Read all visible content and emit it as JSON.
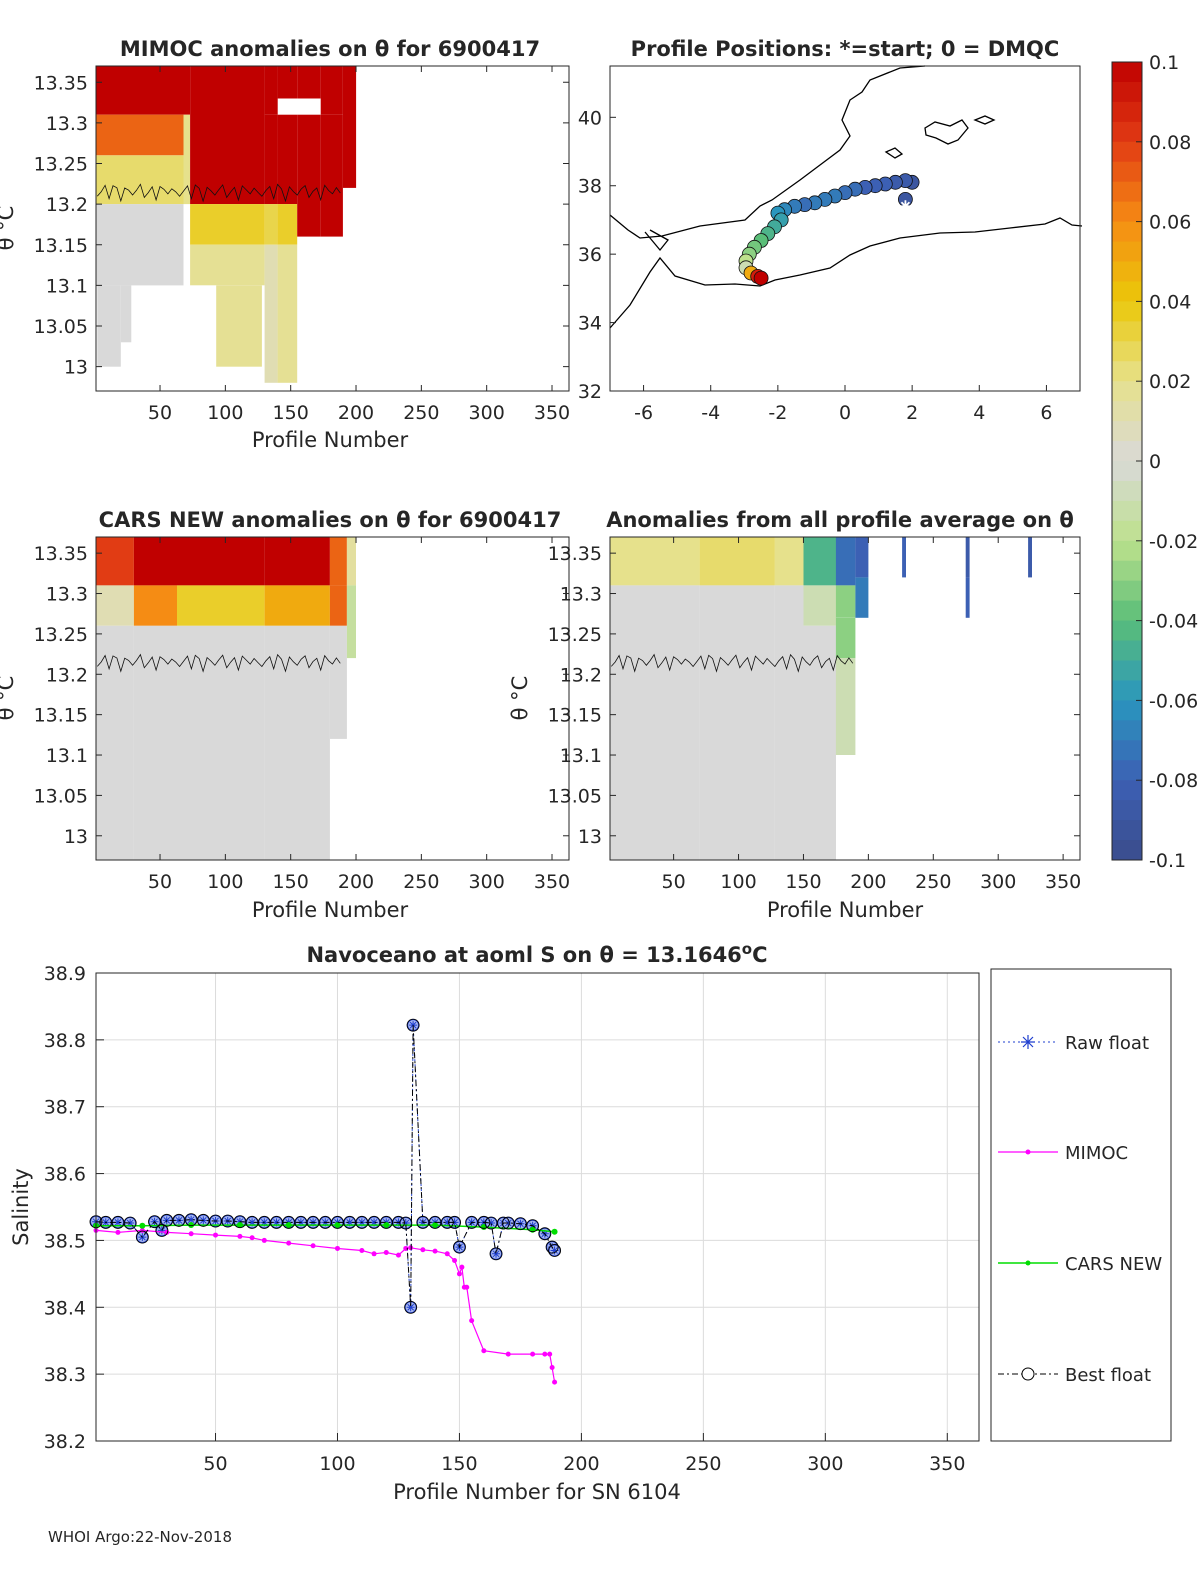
{
  "footer": "WHOI Argo:22-Nov-2018",
  "colors": {
    "anom_high": "#c00000",
    "anom_zero": "#d9d9d9",
    "anom_low": "#3b5fae",
    "raw_float": "#1f3fcf",
    "mimoc": "#ff00ff",
    "cars_new": "#00dd00",
    "best_float": "#000000",
    "coast": "#000000"
  },
  "colorbar": {
    "ticks": [
      "0.1",
      "0.08",
      "0.06",
      "0.04",
      "0.02",
      "0",
      "-0.02",
      "-0.04",
      "-0.06",
      "-0.08",
      "-0.1"
    ],
    "range": [
      -0.1,
      0.1
    ]
  },
  "chart_data": [
    {
      "id": "mimoc_anom",
      "type": "heatmap",
      "title": "MIMOC anomalies on θ  for 6900417",
      "xlabel": "Profile Number",
      "ylabel": "θ °C",
      "xlim": [
        1,
        363
      ],
      "ylim": [
        12.97,
        13.37
      ],
      "xticks": [
        "50",
        "100",
        "150",
        "200",
        "250",
        "300",
        "350"
      ],
      "yticks": [
        "13.35",
        "13.3",
        "13.25",
        "13.2",
        "13.15",
        "13.1",
        "13.05",
        "13"
      ],
      "columns": [
        {
          "x0": 1,
          "x1": 68,
          "bands": [
            [
              13.31,
              13.37,
              0.1
            ],
            [
              13.26,
              13.31,
              0.07
            ],
            [
              13.2,
              13.26,
              0.025
            ],
            [
              13.1,
              13.2,
              0.0
            ]
          ]
        },
        {
          "x0": 2,
          "x1": 20,
          "bands": [
            [
              13.0,
              13.1,
              0.0
            ]
          ]
        },
        {
          "x0": 20,
          "x1": 28,
          "bands": [
            [
              13.03,
              13.1,
              0.0
            ]
          ]
        },
        {
          "x0": 68,
          "x1": 73,
          "bands": [
            [
              13.31,
              13.37,
              0.1
            ],
            [
              13.2,
              13.31,
              0.02
            ]
          ]
        },
        {
          "x0": 73,
          "x1": 130,
          "bands": [
            [
              13.2,
              13.37,
              0.1
            ],
            [
              13.15,
              13.2,
              0.035
            ],
            [
              13.1,
              13.15,
              0.018
            ]
          ]
        },
        {
          "x0": 93,
          "x1": 128,
          "bands": [
            [
              13.0,
              13.1,
              0.018
            ]
          ]
        },
        {
          "x0": 130,
          "x1": 140,
          "bands": [
            [
              13.31,
              13.37,
              0.1
            ],
            [
              13.2,
              13.31,
              0.1
            ],
            [
              13.15,
              13.2,
              0.03
            ],
            [
              12.98,
              13.15,
              0.01
            ]
          ]
        },
        {
          "x0": 140,
          "x1": 155,
          "bands": [
            [
              13.33,
              13.37,
              0.1
            ],
            [
              13.2,
              13.31,
              0.1
            ],
            [
              13.15,
              13.2,
              0.035
            ],
            [
              12.98,
              13.15,
              0.018
            ]
          ]
        },
        {
          "x0": 155,
          "x1": 173,
          "bands": [
            [
              13.33,
              13.37,
              0.1
            ],
            [
              13.16,
              13.31,
              0.1
            ]
          ]
        },
        {
          "x0": 173,
          "x1": 190,
          "bands": [
            [
              13.31,
              13.37,
              0.1
            ],
            [
              13.16,
              13.31,
              0.1
            ]
          ]
        },
        {
          "x0": 190,
          "x1": 200,
          "bands": [
            [
              13.22,
              13.37,
              0.1
            ]
          ]
        }
      ]
    },
    {
      "id": "positions",
      "type": "scatter",
      "title": "Profile Positions: *=start; 0 = DMQC",
      "xlim": [
        -7,
        7
      ],
      "ylim": [
        32,
        41.5
      ],
      "xticks": [
        "-6",
        "-4",
        "-2",
        "0",
        "2",
        "4",
        "6"
      ],
      "yticks": [
        "32",
        "34",
        "36",
        "38",
        "40"
      ],
      "start": [
        1.8,
        37.4
      ],
      "track": [
        [
          1.8,
          37.6
        ],
        [
          2.0,
          38.1
        ],
        [
          1.8,
          38.15
        ],
        [
          1.5,
          38.1
        ],
        [
          1.2,
          38.05
        ],
        [
          0.9,
          38.0
        ],
        [
          0.6,
          37.95
        ],
        [
          0.3,
          37.9
        ],
        [
          0.0,
          37.8
        ],
        [
          -0.3,
          37.7
        ],
        [
          -0.6,
          37.6
        ],
        [
          -0.9,
          37.5
        ],
        [
          -1.2,
          37.45
        ],
        [
          -1.5,
          37.4
        ],
        [
          -1.8,
          37.3
        ],
        [
          -2.0,
          37.2
        ],
        [
          -1.9,
          37.0
        ],
        [
          -2.1,
          36.8
        ],
        [
          -2.3,
          36.6
        ],
        [
          -2.5,
          36.4
        ],
        [
          -2.7,
          36.2
        ],
        [
          -2.85,
          36.0
        ],
        [
          -2.95,
          35.8
        ],
        [
          -2.95,
          35.6
        ],
        [
          -2.8,
          35.45
        ],
        [
          -2.6,
          35.35
        ],
        [
          -2.5,
          35.3
        ]
      ],
      "track_values": [
        -0.09,
        -0.09,
        -0.085,
        -0.085,
        -0.08,
        -0.08,
        -0.08,
        -0.075,
        -0.075,
        -0.07,
        -0.07,
        -0.07,
        -0.075,
        -0.07,
        -0.065,
        -0.06,
        -0.055,
        -0.05,
        -0.045,
        -0.04,
        -0.035,
        -0.03,
        -0.02,
        -0.01,
        0.05,
        0.09,
        0.1
      ]
    },
    {
      "id": "cars_anom",
      "type": "heatmap",
      "title": "CARS NEW anomalies on θ for 6900417",
      "xlabel": "Profile Number",
      "ylabel": "θ °C",
      "xlim": [
        1,
        363
      ],
      "ylim": [
        12.97,
        13.37
      ],
      "xticks": [
        "50",
        "100",
        "150",
        "200",
        "250",
        "300",
        "350"
      ],
      "yticks": [
        "13.35",
        "13.3",
        "13.25",
        "13.2",
        "13.15",
        "13.1",
        "13.05",
        "13"
      ],
      "columns": [
        {
          "x0": 1,
          "x1": 30,
          "bands": [
            [
              13.31,
              13.37,
              0.08
            ],
            [
              13.26,
              13.31,
              0.01
            ],
            [
              12.97,
              13.26,
              0.0
            ]
          ]
        },
        {
          "x0": 30,
          "x1": 63,
          "bands": [
            [
              13.31,
              13.37,
              0.1
            ],
            [
              13.26,
              13.31,
              0.06
            ],
            [
              12.97,
              13.26,
              0.0
            ]
          ]
        },
        {
          "x0": 63,
          "x1": 130,
          "bands": [
            [
              13.31,
              13.37,
              0.1
            ],
            [
              13.26,
              13.31,
              0.035
            ],
            [
              12.97,
              13.26,
              0.0
            ]
          ]
        },
        {
          "x0": 130,
          "x1": 180,
          "bands": [
            [
              13.31,
              13.37,
              0.1
            ],
            [
              13.26,
              13.31,
              0.05
            ],
            [
              12.97,
              13.26,
              0.0
            ]
          ]
        },
        {
          "x0": 180,
          "x1": 193,
          "bands": [
            [
              13.31,
              13.37,
              0.07
            ],
            [
              13.26,
              13.31,
              0.07
            ],
            [
              13.12,
              13.26,
              0.0
            ]
          ]
        },
        {
          "x0": 193,
          "x1": 200,
          "bands": [
            [
              13.31,
              13.37,
              0.015
            ],
            [
              13.22,
              13.31,
              -0.015
            ]
          ]
        }
      ]
    },
    {
      "id": "profile_avg_anom",
      "type": "heatmap",
      "title": "Anomalies from all profile average on θ",
      "xlabel": "Profile Number",
      "ylabel": "θ °C",
      "xlim": [
        1,
        363
      ],
      "ylim": [
        12.97,
        13.37
      ],
      "xticks": [
        "50",
        "100",
        "150",
        "200",
        "250",
        "300",
        "350"
      ],
      "yticks": [
        "13.35",
        "13.3",
        "13.25",
        "13.2",
        "13.15",
        "13.1",
        "13.05",
        "13"
      ],
      "columns": [
        {
          "x0": 1,
          "x1": 70,
          "bands": [
            [
              13.31,
              13.37,
              0.02
            ],
            [
              12.97,
              13.31,
              0.0
            ]
          ]
        },
        {
          "x0": 70,
          "x1": 128,
          "bands": [
            [
              13.31,
              13.37,
              0.025
            ],
            [
              12.97,
              13.31,
              0.0
            ]
          ]
        },
        {
          "x0": 128,
          "x1": 150,
          "bands": [
            [
              13.31,
              13.37,
              0.02
            ],
            [
              12.97,
              13.31,
              0.0
            ]
          ]
        },
        {
          "x0": 150,
          "x1": 175,
          "bands": [
            [
              13.31,
              13.37,
              -0.045
            ],
            [
              13.26,
              13.31,
              -0.01
            ],
            [
              12.97,
              13.26,
              0.0
            ]
          ]
        },
        {
          "x0": 175,
          "x1": 190,
          "bands": [
            [
              13.31,
              13.37,
              -0.075
            ],
            [
              13.27,
              13.31,
              -0.03
            ],
            [
              13.22,
              13.27,
              -0.03
            ],
            [
              13.1,
              13.22,
              -0.01
            ]
          ]
        },
        {
          "x0": 190,
          "x1": 200,
          "bands": [
            [
              13.32,
              13.37,
              -0.08
            ],
            [
              13.27,
              13.32,
              -0.07
            ]
          ]
        },
        {
          "x0": 226,
          "x1": 229,
          "bands": [
            [
              13.32,
              13.37,
              -0.08
            ]
          ]
        },
        {
          "x0": 275,
          "x1": 278,
          "bands": [
            [
              13.32,
              13.37,
              -0.085
            ],
            [
              13.27,
              13.32,
              -0.08
            ]
          ]
        },
        {
          "x0": 323,
          "x1": 326,
          "bands": [
            [
              13.32,
              13.37,
              -0.085
            ]
          ]
        }
      ]
    },
    {
      "id": "salinity",
      "type": "line",
      "title": "Navoceano at aoml S on θ = 13.1646",
      "title_sup": "o",
      "title_unit": "C",
      "xlabel": "Profile Number for SN 6104",
      "ylabel": "Salinity",
      "xlim": [
        1,
        363
      ],
      "ylim": [
        38.2,
        38.9
      ],
      "xticks": [
        50,
        100,
        150,
        200,
        250,
        300,
        350
      ],
      "yticks": [
        38.2,
        38.3,
        38.4,
        38.5,
        38.6,
        38.7,
        38.8,
        38.9
      ],
      "legend": [
        "Raw float",
        "MIMOC",
        "CARS NEW",
        "Best float"
      ],
      "series": [
        {
          "name": "Raw float",
          "x": [
            1,
            5,
            10,
            15,
            20,
            25,
            28,
            30,
            35,
            40,
            45,
            50,
            55,
            60,
            65,
            70,
            75,
            80,
            85,
            90,
            95,
            100,
            105,
            110,
            115,
            120,
            125,
            128,
            130,
            131,
            135,
            140,
            145,
            148,
            150,
            155,
            160,
            163,
            165,
            168,
            170,
            175,
            180,
            185,
            188,
            189
          ],
          "y": [
            38.528,
            38.527,
            38.527,
            38.526,
            38.505,
            38.528,
            38.515,
            38.53,
            38.53,
            38.531,
            38.53,
            38.529,
            38.529,
            38.528,
            38.527,
            38.527,
            38.527,
            38.527,
            38.527,
            38.527,
            38.527,
            38.527,
            38.527,
            38.527,
            38.527,
            38.527,
            38.527,
            38.526,
            38.4,
            38.822,
            38.527,
            38.527,
            38.527,
            38.527,
            38.49,
            38.527,
            38.527,
            38.526,
            38.48,
            38.526,
            38.526,
            38.525,
            38.522,
            38.51,
            38.49,
            38.485
          ]
        },
        {
          "name": "MIMOC",
          "x": [
            1,
            10,
            20,
            30,
            40,
            50,
            60,
            65,
            70,
            80,
            90,
            100,
            110,
            115,
            120,
            125,
            128,
            130,
            135,
            140,
            145,
            148,
            150,
            151,
            152,
            153,
            155,
            160,
            170,
            180,
            185,
            187,
            188,
            189
          ],
          "y": [
            38.515,
            38.512,
            38.515,
            38.512,
            38.51,
            38.508,
            38.506,
            38.504,
            38.5,
            38.496,
            38.492,
            38.488,
            38.485,
            38.48,
            38.482,
            38.478,
            38.488,
            38.489,
            38.486,
            38.484,
            38.48,
            38.47,
            38.45,
            38.46,
            38.43,
            38.43,
            38.38,
            38.335,
            38.33,
            38.33,
            38.33,
            38.33,
            38.31,
            38.288
          ]
        },
        {
          "name": "CARS NEW",
          "x": [
            1,
            20,
            40,
            60,
            80,
            100,
            120,
            140,
            160,
            180,
            189
          ],
          "y": [
            38.522,
            38.522,
            38.523,
            38.523,
            38.523,
            38.523,
            38.523,
            38.523,
            38.52,
            38.516,
            38.513
          ]
        },
        {
          "name": "Best float",
          "x": [
            1,
            5,
            10,
            15,
            20,
            25,
            28,
            30,
            35,
            40,
            45,
            50,
            55,
            60,
            65,
            70,
            75,
            80,
            85,
            90,
            95,
            100,
            105,
            110,
            115,
            120,
            125,
            128,
            130,
            131,
            135,
            140,
            145,
            148,
            150,
            155,
            160,
            163,
            165,
            168,
            170,
            175,
            180,
            185,
            188,
            189
          ],
          "y": [
            38.528,
            38.527,
            38.527,
            38.526,
            38.505,
            38.528,
            38.515,
            38.53,
            38.53,
            38.531,
            38.53,
            38.529,
            38.529,
            38.528,
            38.527,
            38.527,
            38.527,
            38.527,
            38.527,
            38.527,
            38.527,
            38.527,
            38.527,
            38.527,
            38.527,
            38.527,
            38.527,
            38.526,
            38.4,
            38.822,
            38.527,
            38.527,
            38.527,
            38.527,
            38.49,
            38.527,
            38.527,
            38.526,
            38.48,
            38.526,
            38.526,
            38.525,
            38.522,
            38.51,
            38.49,
            38.485
          ]
        }
      ]
    }
  ]
}
